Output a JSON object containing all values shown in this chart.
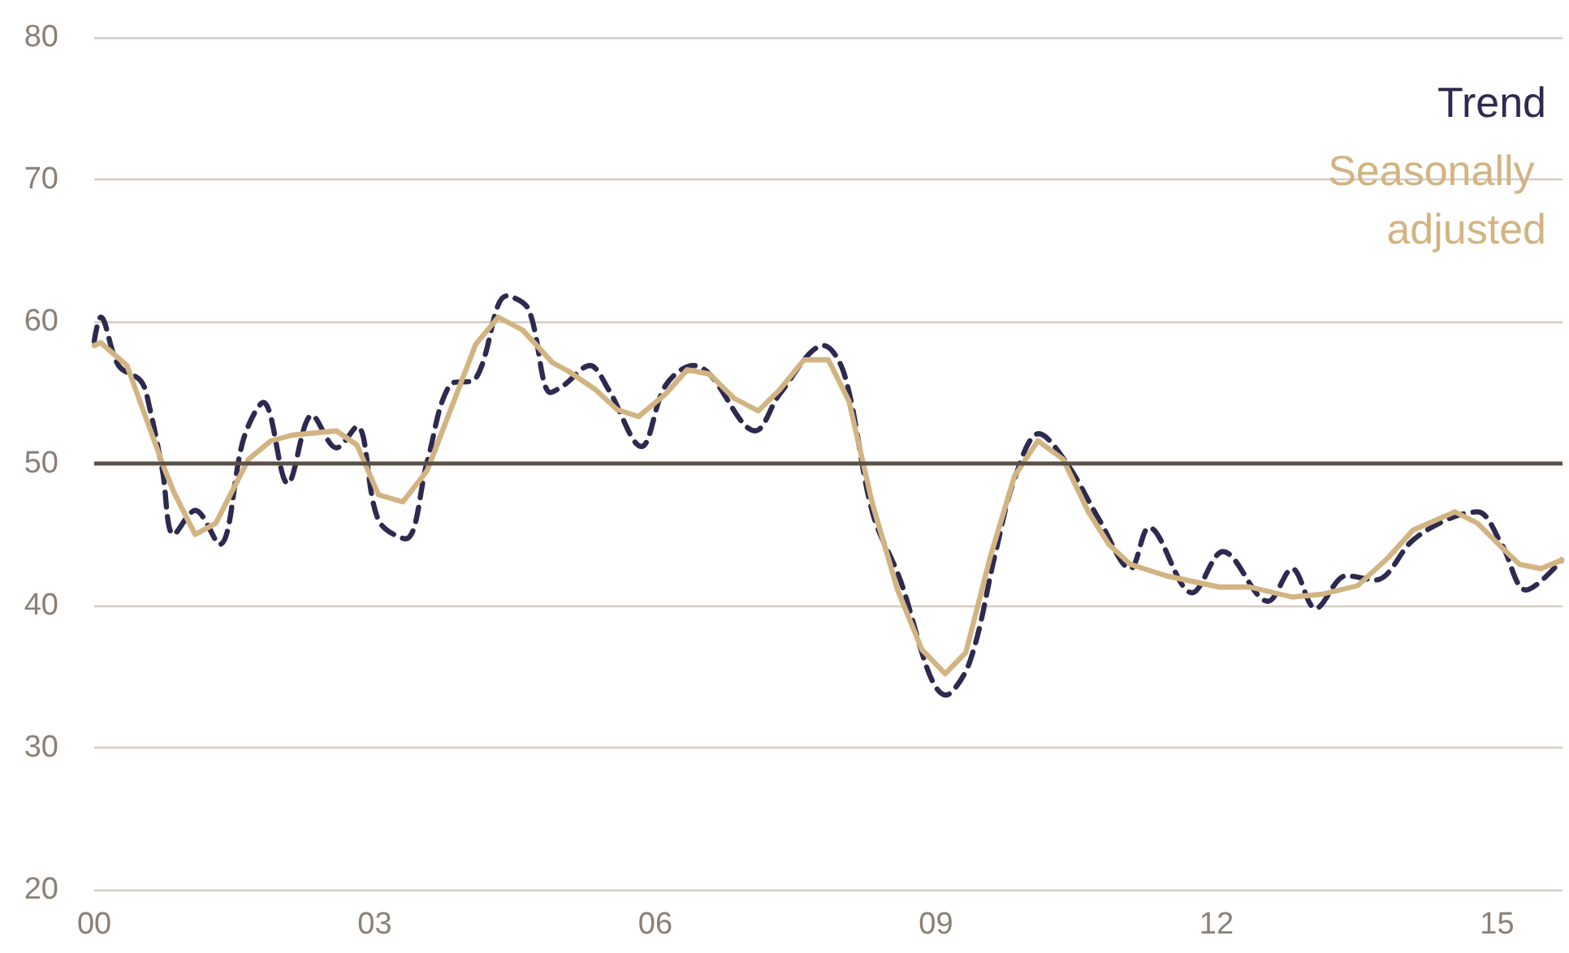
{
  "chart_data": {
    "type": "line",
    "xlim": [
      2000,
      2015.7
    ],
    "ylim": [
      20,
      80
    ],
    "xticks": [
      {
        "value": 2000,
        "label": "00"
      },
      {
        "value": 2003,
        "label": "03"
      },
      {
        "value": 2006,
        "label": "06"
      },
      {
        "value": 2009,
        "label": "09"
      },
      {
        "value": 2012,
        "label": "12"
      },
      {
        "value": 2015,
        "label": "15"
      }
    ],
    "yticks": [
      20,
      30,
      40,
      50,
      60,
      70,
      80
    ],
    "grid": "y",
    "legend": "top right",
    "marker": "none",
    "ref_lines": [
      {
        "axis": "y",
        "value": 50,
        "color": "#5a5048",
        "line_style": "solid"
      }
    ],
    "series": [
      {
        "name": "Trend",
        "color": "#2e2a4f",
        "line_style": "dashed",
        "x": [
          2000,
          2000.07,
          2000.26,
          2000.5,
          2000.59,
          2000.73,
          2000.85,
          2001.08,
          2001.34,
          2001.6,
          2001.81,
          2002.07,
          2002.33,
          2002.59,
          2002.81,
          2003.04,
          2003.33,
          2003.56,
          2003.8,
          2004.08,
          2004.41,
          2004.64,
          2004.88,
          2005.02,
          2005.3,
          2005.5,
          2005.85,
          2006.11,
          2006.41,
          2006.58,
          2007.07,
          2007.33,
          2007.8,
          2008.02,
          2008.32,
          2008.59,
          2009.11,
          2009.36,
          2009.64,
          2009.84,
          2010.1,
          2010.4,
          2010.75,
          2011.08,
          2011.28,
          2011.74,
          2012.07,
          2012.55,
          2012.81,
          2013.06,
          2013.39,
          2013.7,
          2014.1,
          2014.48,
          2014.79,
          2015.05,
          2015.31,
          2015.69
        ],
        "values": [
          58.6,
          60.3,
          56.9,
          55.8,
          54,
          49.5,
          45,
          46.7,
          44.3,
          51.8,
          54.3,
          48.6,
          53.4,
          51.1,
          52.6,
          46,
          44.7,
          50.1,
          55.5,
          56,
          61.8,
          60.9,
          55,
          55.5,
          56.9,
          55.2,
          51.2,
          55.5,
          56.9,
          56.3,
          52.3,
          54.9,
          58.3,
          56.3,
          46.6,
          42.3,
          33.7,
          36,
          43.8,
          48.9,
          52.1,
          50,
          46,
          42.6,
          45.5,
          40.9,
          43.8,
          40.3,
          42.6,
          39.8,
          42.1,
          41.8,
          44.6,
          46.1,
          46.6,
          44.3,
          41.1,
          43.2
        ]
      },
      {
        "name": "Seasonally adjusted",
        "color": "#d2b483",
        "line_style": "solid",
        "x": [
          2000,
          2000.07,
          2000.35,
          2000.73,
          2000.85,
          2001.08,
          2001.3,
          2001.65,
          2001.89,
          2002.12,
          2002.59,
          2002.81,
          2003.04,
          2003.3,
          2003.56,
          2004.08,
          2004.32,
          2004.58,
          2004.9,
          2005.07,
          2005.36,
          2005.59,
          2005.82,
          2006.11,
          2006.34,
          2006.58,
          2006.84,
          2007.1,
          2007.33,
          2007.59,
          2007.85,
          2008.07,
          2008.32,
          2008.59,
          2008.85,
          2009.1,
          2009.32,
          2009.58,
          2009.84,
          2010.09,
          2010.36,
          2010.63,
          2010.85,
          2011.08,
          2011.46,
          2012.03,
          2012.36,
          2012.81,
          2013.13,
          2013.51,
          2013.84,
          2014.1,
          2014.55,
          2014.79,
          2015.05,
          2015.24,
          2015.47,
          2015.69
        ],
        "values": [
          58.3,
          58.5,
          56.9,
          50,
          48,
          45,
          45.8,
          50.3,
          51.6,
          52,
          52.3,
          51.3,
          47.8,
          47.3,
          49.5,
          58.4,
          60.3,
          59.4,
          57.1,
          56.5,
          55.2,
          53.8,
          53.3,
          54.9,
          56.6,
          56.3,
          54.6,
          53.7,
          55.2,
          57.3,
          57.3,
          54.4,
          47.2,
          41.1,
          36.9,
          35.2,
          36.7,
          43.4,
          49.1,
          51.6,
          50.3,
          46.6,
          44.3,
          42.9,
          42.1,
          41.3,
          41.3,
          40.6,
          40.8,
          41.4,
          43.4,
          45.3,
          46.6,
          45.8,
          44.1,
          42.9,
          42.6,
          43.2
        ]
      }
    ]
  }
}
